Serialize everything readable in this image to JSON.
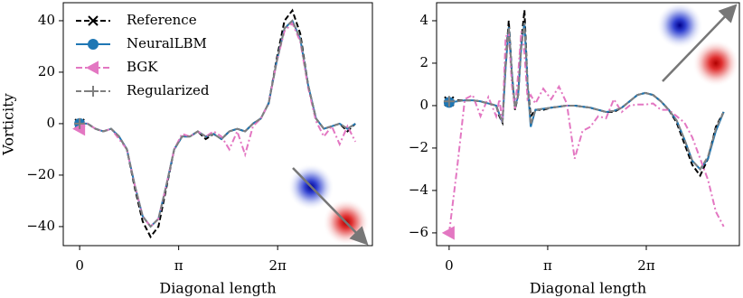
{
  "chart_data": [
    {
      "type": "line",
      "ylabel": "Vorticity",
      "xlabel": "Diagonal length",
      "legend": "upper left",
      "xlim": [
        -0.52,
        9.29
      ],
      "ylim": [
        -47.4,
        47
      ],
      "xticks": [
        {
          "value": 0,
          "label": "0"
        },
        {
          "value": 3.1416,
          "label": "π"
        },
        {
          "value": 6.2832,
          "label": "2π"
        }
      ],
      "yticks": [
        {
          "value": -40,
          "label": "−40"
        },
        {
          "value": -20,
          "label": "−20"
        },
        0,
        20,
        40
      ],
      "x": [
        0,
        0.25,
        0.5,
        0.75,
        1.0,
        1.25,
        1.5,
        1.75,
        2.0,
        2.25,
        2.5,
        2.75,
        3.0,
        3.25,
        3.5,
        3.75,
        4.0,
        4.25,
        4.5,
        4.75,
        5.0,
        5.25,
        5.5,
        5.75,
        6.0,
        6.25,
        6.5,
        6.75,
        7.0,
        7.25,
        7.5,
        7.75,
        8.0,
        8.25,
        8.5,
        8.75
      ],
      "series": [
        {
          "name": "Reference",
          "color": "#000000",
          "linestyle": "dashed",
          "marker": "x",
          "values": [
            0,
            0,
            -2,
            -3,
            -2,
            -5,
            -10,
            -25,
            -38,
            -44,
            -40,
            -25,
            -10,
            -5,
            -5,
            -3,
            -6,
            -4,
            -6,
            -3,
            -2,
            -3,
            0,
            2,
            8,
            25,
            40,
            44,
            35,
            15,
            2,
            -2,
            -1,
            0,
            -3,
            0
          ]
        },
        {
          "name": "NeuralLBM",
          "color": "#1f77b4",
          "linestyle": "solid",
          "marker": "o",
          "values": [
            0,
            0,
            -2,
            -3,
            -2,
            -5,
            -10,
            -24,
            -36,
            -40,
            -37,
            -24,
            -10,
            -5,
            -5,
            -3,
            -5,
            -4,
            -6,
            -3,
            -2,
            -3,
            0,
            2,
            8,
            24,
            37,
            40,
            33,
            15,
            2,
            -2,
            -1,
            0,
            -2,
            0
          ]
        },
        {
          "name": "BGK",
          "color": "#e377c2",
          "linestyle": "dashdot",
          "marker": "<",
          "values": [
            -2,
            0,
            -2,
            -3,
            -2,
            -6,
            -10,
            -24,
            -36,
            -40,
            -37,
            -24,
            -10,
            -4,
            -5,
            -3,
            -5,
            -3,
            -5,
            -10,
            -3,
            -12,
            -1,
            2,
            8,
            24,
            36,
            39,
            32,
            14,
            1,
            -5,
            -1,
            -8,
            -1,
            -7
          ]
        },
        {
          "name": "Regularized",
          "color": "#7f7f7f",
          "linestyle": "dashed",
          "marker": "+",
          "values": [
            0,
            0,
            -2,
            -3,
            -2,
            -5,
            -10,
            -24,
            -36,
            -40,
            -37,
            -24,
            -10,
            -5,
            -5,
            -3,
            -5,
            -4,
            -6,
            -3,
            -2,
            -3,
            0,
            2,
            8,
            24,
            37,
            40,
            33,
            15,
            2,
            -2,
            -1,
            0,
            -2,
            0
          ]
        }
      ]
    },
    {
      "type": "line",
      "xlabel": "Diagonal length",
      "xlim": [
        -0.4,
        9.25
      ],
      "ylim": [
        -6.6,
        4.85
      ],
      "xticks": [
        {
          "value": 0,
          "label": "0"
        },
        {
          "value": 3.1416,
          "label": "π"
        },
        {
          "value": 6.2832,
          "label": "2π"
        }
      ],
      "yticks": [
        {
          "value": -6,
          "label": "−6"
        },
        {
          "value": -4,
          "label": "−4"
        },
        {
          "value": -2,
          "label": "−2"
        },
        0,
        2,
        4
      ],
      "x": [
        0,
        0.25,
        0.5,
        0.75,
        1.0,
        1.25,
        1.5,
        1.6,
        1.7,
        1.8,
        1.9,
        2.0,
        2.1,
        2.2,
        2.3,
        2.4,
        2.5,
        2.6,
        2.75,
        3.0,
        3.25,
        3.5,
        3.75,
        4.0,
        4.25,
        4.5,
        4.75,
        5.0,
        5.25,
        5.5,
        5.75,
        6.0,
        6.25,
        6.5,
        6.75,
        7.0,
        7.25,
        7.5,
        7.75,
        8.0,
        8.25,
        8.5,
        8.75
      ],
      "series": [
        {
          "color": "#000000",
          "linestyle": "dashed",
          "marker": "x",
          "values": [
            0.2,
            0.25,
            0.25,
            0.25,
            0.2,
            0.1,
            0,
            -0.5,
            -0.8,
            2.0,
            4.0,
            1.5,
            -0.2,
            0.5,
            3.0,
            4.5,
            1.0,
            -0.5,
            -0.2,
            -0.2,
            -0.1,
            -0.05,
            0,
            0,
            -0.05,
            -0.1,
            -0.2,
            -0.3,
            -0.3,
            -0.1,
            0.2,
            0.5,
            0.6,
            0.5,
            0.2,
            -0.2,
            -0.8,
            -1.8,
            -2.8,
            -3.3,
            -2.5,
            -1.0,
            -0.3
          ]
        },
        {
          "color": "#1f77b4",
          "linestyle": "solid",
          "marker": "o",
          "values": [
            0.15,
            0.2,
            0.25,
            0.25,
            0.2,
            0.1,
            0,
            -0.4,
            -0.8,
            1.8,
            3.7,
            1.5,
            -0.1,
            0.5,
            2.8,
            3.9,
            1.0,
            -1.0,
            -0.2,
            -0.15,
            -0.1,
            -0.05,
            0,
            0,
            -0.05,
            -0.1,
            -0.2,
            -0.3,
            -0.25,
            -0.1,
            0.2,
            0.5,
            0.6,
            0.5,
            0.2,
            -0.2,
            -0.7,
            -1.6,
            -2.6,
            -3.0,
            -2.5,
            -1.2,
            -0.3
          ]
        },
        {
          "color": "#e377c2",
          "linestyle": "dashdot",
          "marker": "<",
          "values": [
            -6,
            -3,
            0.3,
            0.5,
            -0.5,
            0.4,
            -0.5,
            0.3,
            -0.8,
            3.2,
            3.5,
            1.0,
            -0.2,
            1.5,
            3.5,
            2.5,
            0.3,
            0.5,
            0.1,
            0.8,
            0.3,
            0.9,
            0.1,
            -2.5,
            -1.2,
            -1.0,
            -0.5,
            -0.6,
            0.3,
            -0.3,
            0,
            0.05,
            0.05,
            0.1,
            -0.2,
            -0.2,
            -0.5,
            -0.8,
            -1.5,
            -2.5,
            -3.5,
            -5.0,
            -5.7
          ]
        },
        {
          "color": "#7f7f7f",
          "linestyle": "dashed",
          "marker": "+",
          "values": [
            0.2,
            0.2,
            0.25,
            0.25,
            0.2,
            0.1,
            0,
            -0.4,
            -0.8,
            1.8,
            3.7,
            1.5,
            -0.1,
            0.5,
            2.8,
            3.9,
            1.0,
            -0.9,
            -0.2,
            -0.15,
            -0.1,
            -0.05,
            0,
            0,
            -0.05,
            -0.1,
            -0.2,
            -0.3,
            -0.25,
            -0.1,
            0.2,
            0.5,
            0.6,
            0.5,
            0.2,
            -0.2,
            -0.7,
            -1.6,
            -2.6,
            -3.0,
            -2.4,
            -1.1,
            -0.3
          ]
        }
      ]
    }
  ]
}
